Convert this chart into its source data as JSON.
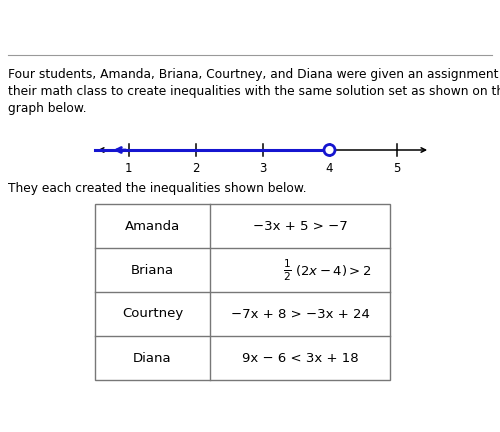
{
  "bg_color": "#ffffff",
  "paragraph_text_lines": [
    "Four students, Amanda, Briana, Courtney, and Diana were given an assignment in",
    "their math class to create inequalities with the same solution set as shown on the",
    "graph below."
  ],
  "sub_text": "They each created the inequalities shown below.",
  "number_line": {
    "data_min": 0.5,
    "data_max": 5.5,
    "tick_positions": [
      1,
      2,
      3,
      4,
      5
    ],
    "tick_labels": [
      "1",
      "2",
      "3",
      "4",
      "5"
    ],
    "line_color": "#1515d0",
    "axis_color": "#000000",
    "open_circle_at": 4.0,
    "blue_left_arrow": true
  },
  "table": {
    "col1": [
      "Amanda",
      "Briana",
      "Courtney",
      "Diana"
    ],
    "col2_text": [
      "−3x + 5 > −7",
      "FRACTION_BRIANA",
      "−7x + 8 > −3x + 24",
      "9x − 6 < 3x + 18"
    ]
  }
}
